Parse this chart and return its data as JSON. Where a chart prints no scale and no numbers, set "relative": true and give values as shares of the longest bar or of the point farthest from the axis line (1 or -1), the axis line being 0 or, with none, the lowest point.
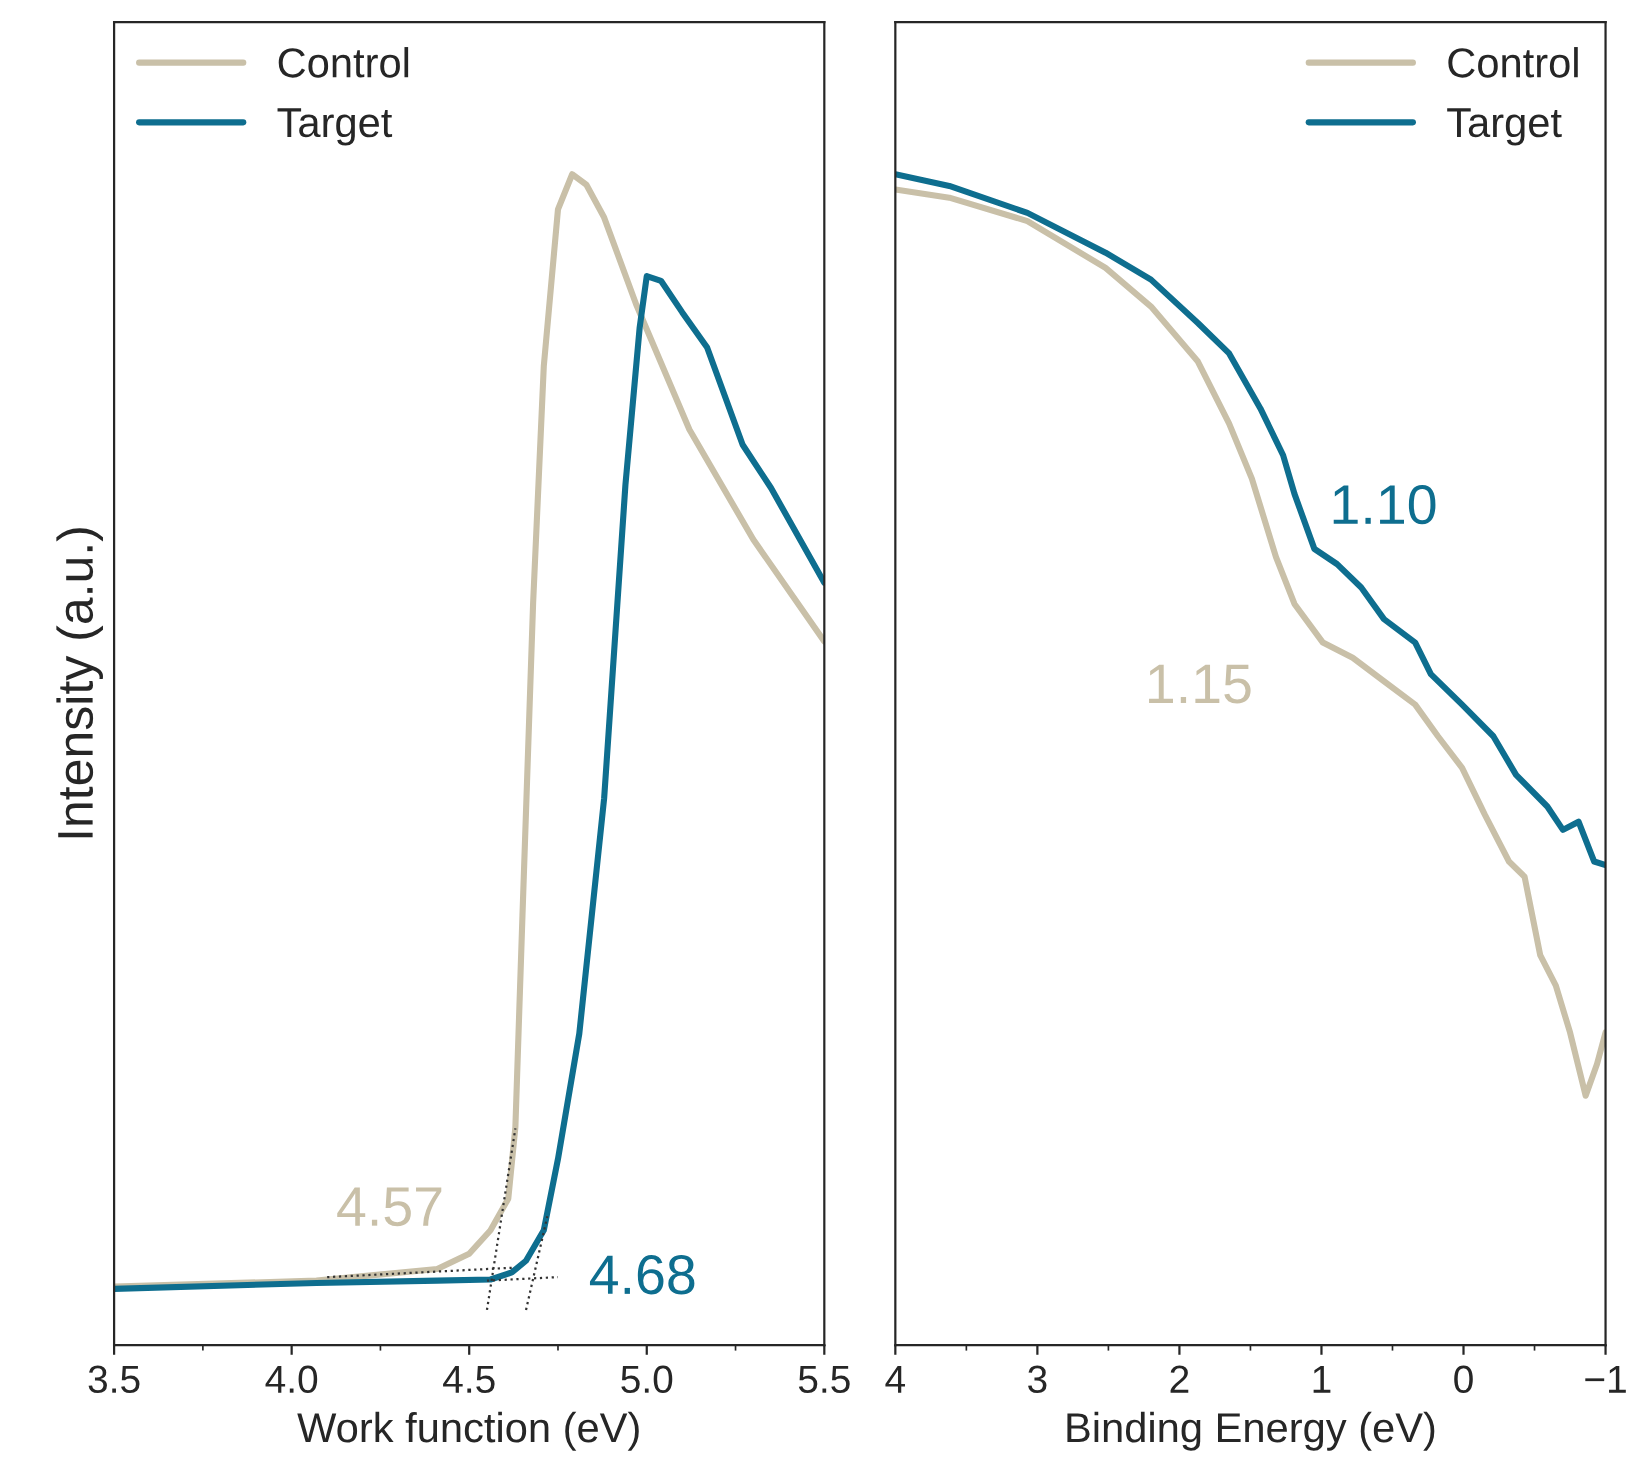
{
  "chart_data": [
    {
      "type": "line",
      "xlabel": "Work function (eV)",
      "ylabel": "Intensity (a.u.)",
      "relative": true,
      "xlim": [
        3.5,
        5.5
      ],
      "xticks": [
        3.5,
        {
          "value": 4.0,
          "label": "4.0"
        },
        4.5,
        {
          "value": 5.0,
          "label": "5.0"
        },
        5.5
      ],
      "tick_labels": "x",
      "legend": "top left",
      "grid": false,
      "series": [
        {
          "name": "Control",
          "color": "#c9c0a8",
          "x": [
            3.5,
            4.07,
            4.41,
            4.5,
            4.56,
            4.61,
            4.63,
            4.65,
            4.68,
            4.71,
            4.75,
            4.79,
            4.83,
            4.88,
            4.97,
            5.12,
            5.3,
            5.5
          ],
          "values": [
            0.05,
            0.055,
            0.065,
            0.078,
            0.098,
            0.125,
            0.186,
            0.367,
            0.634,
            0.836,
            0.97,
            1.0,
            0.991,
            0.963,
            0.889,
            0.782,
            0.688,
            0.601
          ]
        },
        {
          "name": "Target",
          "color": "#0e6e8f",
          "x": [
            3.5,
            4.07,
            4.41,
            4.56,
            4.62,
            4.66,
            4.71,
            4.75,
            4.81,
            4.88,
            4.94,
            4.98,
            5.0,
            5.04,
            5.1,
            5.17,
            5.27,
            5.35,
            5.5
          ],
          "values": [
            0.048,
            0.053,
            0.055,
            0.056,
            0.062,
            0.072,
            0.098,
            0.159,
            0.266,
            0.467,
            0.735,
            0.869,
            0.913,
            0.909,
            0.882,
            0.852,
            0.769,
            0.732,
            0.651
          ]
        },
        {
          "color": "#333333",
          "line_style": "dotted",
          "x": [
            4.55,
            4.63
          ],
          "values": [
            0.03,
            0.185
          ]
        },
        {
          "color": "#333333",
          "line_style": "dotted",
          "x": [
            4.1,
            4.62
          ],
          "values": [
            0.058,
            0.066
          ]
        },
        {
          "color": "#333333",
          "line_style": "dotted",
          "x": [
            4.66,
            4.72
          ],
          "values": [
            0.03,
            0.11
          ]
        },
        {
          "color": "#333333",
          "line_style": "dotted",
          "x": [
            4.55,
            4.75
          ],
          "values": [
            0.055,
            0.058
          ]
        }
      ],
      "annotations": [
        {
          "text": "4.57",
          "x": 4.57,
          "y": 0.1
        },
        {
          "text": "4.68",
          "x": 4.68,
          "y": 0.056
        }
      ]
    },
    {
      "type": "line",
      "xlabel": "Binding Energy (eV)",
      "relative": true,
      "xlim": [
        4,
        -1
      ],
      "xticks": [
        4,
        3,
        2,
        1,
        0,
        {
          "value": -1,
          "label": "−1"
        }
      ],
      "tick_labels": "x",
      "legend": "top right",
      "grid": false,
      "series": [
        {
          "name": "Control",
          "color": "#c9c0a8",
          "x": [
            4.0,
            3.62,
            3.07,
            2.52,
            2.2,
            1.87,
            1.65,
            1.49,
            1.32,
            1.19,
            0.99,
            0.78,
            0.56,
            0.34,
            0.18,
            0.01,
            -0.15,
            -0.32,
            -0.43,
            -0.54,
            -0.65,
            -0.75,
            -0.86,
            -0.94,
            -1.0
          ],
          "values": [
            0.987,
            0.98,
            0.96,
            0.92,
            0.887,
            0.84,
            0.787,
            0.74,
            0.673,
            0.633,
            0.6,
            0.587,
            0.567,
            0.547,
            0.52,
            0.493,
            0.453,
            0.413,
            0.4,
            0.333,
            0.307,
            0.267,
            0.213,
            0.24,
            0.267
          ]
        },
        {
          "name": "Target",
          "color": "#0e6e8f",
          "x": [
            4.0,
            3.62,
            3.07,
            2.52,
            2.2,
            1.87,
            1.65,
            1.43,
            1.27,
            1.19,
            1.05,
            0.89,
            0.72,
            0.56,
            0.34,
            0.23,
            0.01,
            -0.21,
            -0.37,
            -0.59,
            -0.7,
            -0.81,
            -0.92,
            -1.0
          ],
          "values": [
            1.0,
            0.99,
            0.967,
            0.933,
            0.91,
            0.873,
            0.847,
            0.8,
            0.76,
            0.727,
            0.68,
            0.667,
            0.647,
            0.62,
            0.6,
            0.573,
            0.547,
            0.52,
            0.487,
            0.46,
            0.44,
            0.447,
            0.413,
            0.41
          ]
        }
      ],
      "annotations": [
        {
          "text": "1.10",
          "x": 1.1,
          "y": 0.69
        },
        {
          "text": "1.15",
          "x": 1.15,
          "y": 0.62
        }
      ]
    }
  ]
}
